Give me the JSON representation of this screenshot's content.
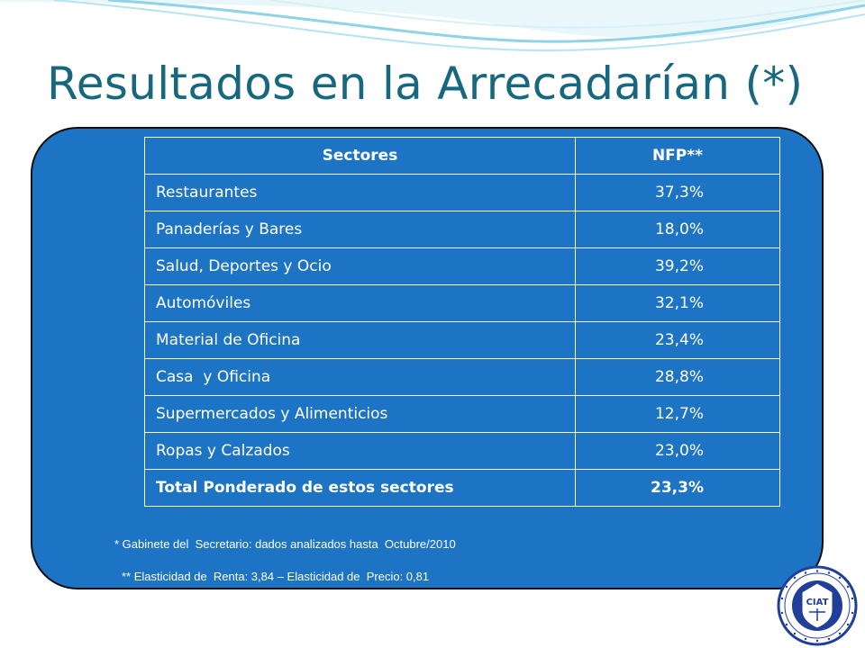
{
  "slide": {
    "title": "Resultados en la Arrecadarían (*)"
  },
  "table": {
    "headers": [
      "Sectores",
      "NFP**"
    ],
    "rows": [
      {
        "sector": "Restaurantes",
        "nfp": "37,3%"
      },
      {
        "sector": "Panaderías y Bares",
        "nfp": "18,0%"
      },
      {
        "sector": "Salud, Deportes y Ocio",
        "nfp": "39,2%"
      },
      {
        "sector": "Automóviles",
        "nfp": "32,1%"
      },
      {
        "sector": "Material de Oficina",
        "nfp": "23,4%"
      },
      {
        "sector": "Casa  y Oficina",
        "nfp": "28,8%"
      },
      {
        "sector": "Supermercados y Alimenticios",
        "nfp": "12,7%"
      },
      {
        "sector": "Ropas y Calzados",
        "nfp": "23,0%"
      }
    ],
    "total": {
      "sector": "Total Ponderado de estos sectores",
      "nfp": "23,3%"
    }
  },
  "notes": [
    "* Gabinete del  Secretario: dados analizados hasta  Octubre/2010",
    "** Elasticidad de  Renta: 3,84 – Elasticidad de  Precio: 0,81"
  ],
  "logo": {
    "text": "CIAT"
  },
  "colors": {
    "title": "#17687f",
    "panel": "#1e74c4",
    "wave": "#8fd3e6",
    "logo_blue": "#1f3f9a"
  }
}
